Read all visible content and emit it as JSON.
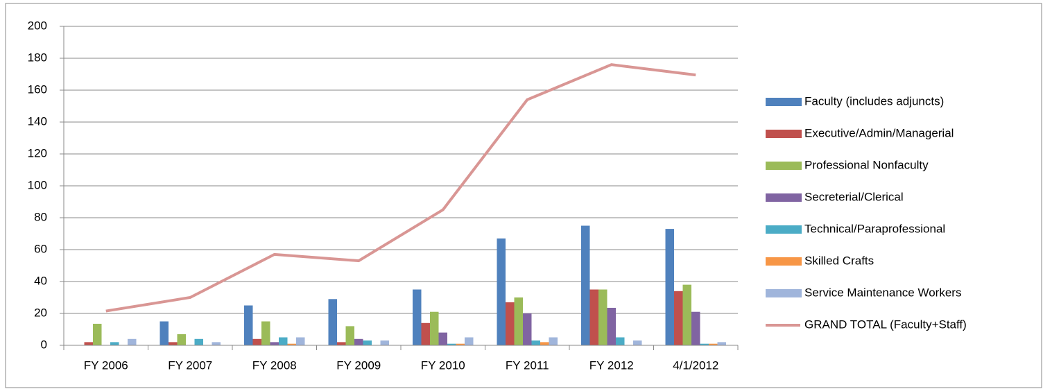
{
  "chart_data": {
    "type": "bar",
    "categories": [
      "FY 2006",
      "FY 2007",
      "FY 2008",
      "FY 2009",
      "FY 2010",
      "FY 2011",
      "FY 2012",
      "4/1/2012"
    ],
    "series": [
      {
        "name": "Faculty (includes adjuncts)",
        "color": "#4f81bd",
        "type": "bar",
        "values": [
          0,
          15,
          25,
          29,
          35,
          67,
          75,
          73
        ]
      },
      {
        "name": "Executive/Admin/Managerial",
        "color": "#c0504d",
        "type": "bar",
        "values": [
          2,
          2,
          4,
          2,
          14,
          27,
          35,
          34
        ]
      },
      {
        "name": "Professional Nonfaculty",
        "color": "#9bbb59",
        "type": "bar",
        "values": [
          13.5,
          7,
          15,
          12,
          21,
          30,
          35,
          38
        ]
      },
      {
        "name": "Secreterial/Clerical",
        "color": "#8064a2",
        "type": "bar",
        "values": [
          0,
          0,
          2,
          4,
          8,
          20,
          23.5,
          21
        ]
      },
      {
        "name": "Technical/Paraprofessional",
        "color": "#4bacc6",
        "type": "bar",
        "values": [
          2,
          4,
          5,
          3,
          1,
          3,
          5,
          1
        ]
      },
      {
        "name": "Skilled Crafts",
        "color": "#f79646",
        "type": "bar",
        "values": [
          0,
          0,
          1,
          0,
          1,
          2,
          0,
          1
        ]
      },
      {
        "name": "Service Maintenance Workers",
        "color": "#a0b5db",
        "type": "bar",
        "values": [
          4,
          2,
          5,
          3,
          5,
          5,
          3,
          2
        ]
      },
      {
        "name": "GRAND TOTAL (Faculty+Staff)",
        "color": "#d99694",
        "type": "line",
        "values": [
          21.5,
          30,
          57,
          53,
          85,
          154,
          176,
          169.5
        ]
      }
    ],
    "ylim": [
      0,
      200
    ],
    "yticks": [
      0,
      20,
      40,
      60,
      80,
      100,
      120,
      140,
      160,
      180,
      200
    ],
    "grid": true,
    "legend": "right"
  }
}
